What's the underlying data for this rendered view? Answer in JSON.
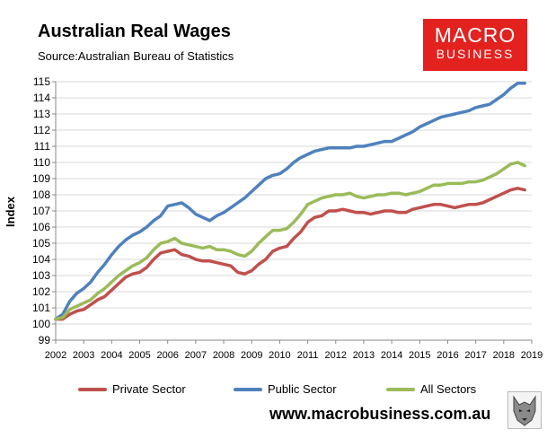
{
  "header": {
    "title": "Australian Real Wages",
    "subtitle": "Source:Australian Bureau of Statistics"
  },
  "logo": {
    "line1": "MACRO",
    "line2": "BUSINESS"
  },
  "footer": {
    "website": "www.macrobusiness.com.au"
  },
  "colors": {
    "private": "#c0504d",
    "public": "#4f81bd",
    "all": "#9bbb59",
    "logo_bg": "#e3211f"
  },
  "chart_data": {
    "type": "line",
    "title": "Australian Real Wages",
    "ylabel": "Index",
    "xlabel": "",
    "ylim": [
      99,
      115
    ],
    "xlim": [
      2002,
      2019
    ],
    "yticks": [
      "99",
      "100",
      "101",
      "102",
      "103",
      "104",
      "105",
      "106",
      "107",
      "108",
      "109",
      "110",
      "111",
      "112",
      "113",
      "114",
      "115"
    ],
    "xticks": [
      "2002",
      "2003",
      "2004",
      "2005",
      "2006",
      "2007",
      "2008",
      "2009",
      "2010",
      "2011",
      "2012",
      "2013",
      "2014",
      "2015",
      "2016",
      "2017",
      "2018",
      "2019"
    ],
    "grid": true,
    "legend_position": "bottom",
    "x": [
      2002.0,
      2002.25,
      2002.5,
      2002.75,
      2003.0,
      2003.25,
      2003.5,
      2003.75,
      2004.0,
      2004.25,
      2004.5,
      2004.75,
      2005.0,
      2005.25,
      2005.5,
      2005.75,
      2006.0,
      2006.25,
      2006.5,
      2006.75,
      2007.0,
      2007.25,
      2007.5,
      2007.75,
      2008.0,
      2008.25,
      2008.5,
      2008.75,
      2009.0,
      2009.25,
      2009.5,
      2009.75,
      2010.0,
      2010.25,
      2010.5,
      2010.75,
      2011.0,
      2011.25,
      2011.5,
      2011.75,
      2012.0,
      2012.25,
      2012.5,
      2012.75,
      2013.0,
      2013.25,
      2013.5,
      2013.75,
      2014.0,
      2014.25,
      2014.5,
      2014.75,
      2015.0,
      2015.25,
      2015.5,
      2015.75,
      2016.0,
      2016.25,
      2016.5,
      2016.75,
      2017.0,
      2017.25,
      2017.5,
      2017.75,
      2018.0,
      2018.25,
      2018.5,
      2018.75
    ],
    "series": [
      {
        "name": "Private Sector",
        "color": "#c0504d",
        "values": [
          100.3,
          100.3,
          100.6,
          100.8,
          100.9,
          101.2,
          101.5,
          101.7,
          102.1,
          102.5,
          102.9,
          103.1,
          103.2,
          103.5,
          104.0,
          104.4,
          104.5,
          104.6,
          104.3,
          104.2,
          104.0,
          103.9,
          103.9,
          103.8,
          103.7,
          103.6,
          103.2,
          103.1,
          103.3,
          103.7,
          104.0,
          104.5,
          104.7,
          104.8,
          105.3,
          105.7,
          106.3,
          106.6,
          106.7,
          107.0,
          107.0,
          107.1,
          107.0,
          106.9,
          106.9,
          106.8,
          106.9,
          107.0,
          107.0,
          106.9,
          106.9,
          107.1,
          107.2,
          107.3,
          107.4,
          107.4,
          107.3,
          107.2,
          107.3,
          107.4,
          107.4,
          107.5,
          107.7,
          107.9,
          108.1,
          108.3,
          108.4,
          108.3
        ]
      },
      {
        "name": "Public Sector",
        "color": "#4f81bd",
        "values": [
          100.3,
          100.6,
          101.4,
          101.9,
          102.2,
          102.6,
          103.2,
          103.7,
          104.3,
          104.8,
          105.2,
          105.5,
          105.7,
          106.0,
          106.4,
          106.7,
          107.3,
          107.4,
          107.5,
          107.2,
          106.8,
          106.6,
          106.4,
          106.7,
          106.9,
          107.2,
          107.5,
          107.8,
          108.2,
          108.6,
          109.0,
          109.2,
          109.3,
          109.6,
          110.0,
          110.3,
          110.5,
          110.7,
          110.8,
          110.9,
          110.9,
          110.9,
          110.9,
          111.0,
          111.0,
          111.1,
          111.2,
          111.3,
          111.3,
          111.5,
          111.7,
          111.9,
          112.2,
          112.4,
          112.6,
          112.8,
          112.9,
          113.0,
          113.1,
          113.2,
          113.4,
          113.5,
          113.6,
          113.9,
          114.2,
          114.6,
          114.9,
          114.9
        ]
      },
      {
        "name": "All Sectors",
        "color": "#9bbb59",
        "values": [
          100.3,
          100.4,
          100.9,
          101.1,
          101.3,
          101.5,
          101.9,
          102.2,
          102.6,
          103.0,
          103.3,
          103.6,
          103.8,
          104.1,
          104.6,
          105.0,
          105.1,
          105.3,
          105.0,
          104.9,
          104.8,
          104.7,
          104.8,
          104.6,
          104.6,
          104.5,
          104.3,
          104.2,
          104.5,
          105.0,
          105.4,
          105.8,
          105.8,
          105.9,
          106.3,
          106.8,
          107.4,
          107.6,
          107.8,
          107.9,
          108.0,
          108.0,
          108.1,
          107.9,
          107.8,
          107.9,
          108.0,
          108.0,
          108.1,
          108.1,
          108.0,
          108.1,
          108.2,
          108.4,
          108.6,
          108.6,
          108.7,
          108.7,
          108.7,
          108.8,
          108.8,
          108.9,
          109.1,
          109.3,
          109.6,
          109.9,
          110.0,
          109.8
        ]
      }
    ]
  }
}
